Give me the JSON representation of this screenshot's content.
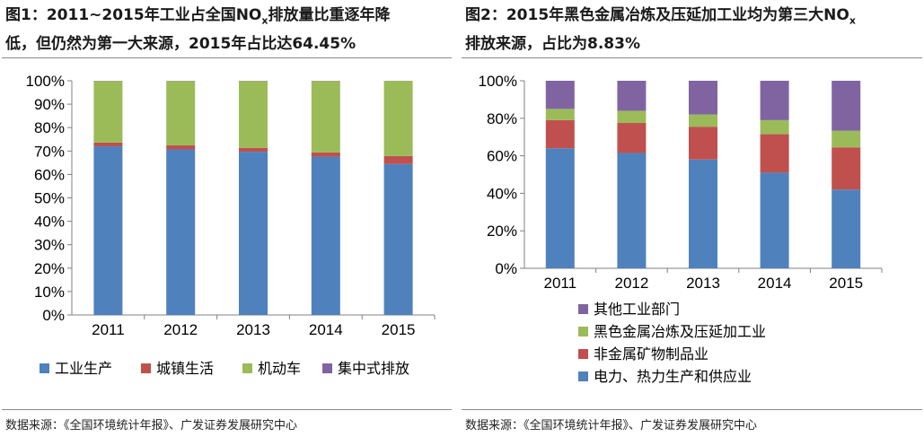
{
  "charts": [
    {
      "id": "left",
      "title": {
        "line1_pre": "图1：2011~2015年工业占全国NO",
        "line1_sub": "x",
        "line1_post": "排放量比重逐年降",
        "line2": "低，但仍然为第一大来源，2015年占比达64.45%"
      },
      "source": "数据来源：《全国环境统计年报》、广发证券发展研究中心"
    },
    {
      "id": "right",
      "title": {
        "line1_pre": "图2：2015年黑色金属冶炼及压延加工业均为第三大NO",
        "line1_sub": "x",
        "line2": "排放来源，占比为8.83%"
      },
      "source": "数据来源：《全国环境统计年报》、广发证券发展研究中心"
    }
  ],
  "chart_data": [
    {
      "type": "bar",
      "stacked": true,
      "categories": [
        "2011",
        "2012",
        "2013",
        "2014",
        "2015"
      ],
      "ylim": [
        0,
        100
      ],
      "yticks": [
        "0%",
        "10%",
        "20%",
        "30%",
        "40%",
        "50%",
        "60%",
        "70%",
        "80%",
        "90%",
        "100%"
      ],
      "ytick_values": [
        0,
        10,
        20,
        30,
        40,
        50,
        60,
        70,
        80,
        90,
        100
      ],
      "legend_position": "bottom",
      "grid": false,
      "series": [
        {
          "name": "工业生产",
          "color": "#4f81bd",
          "values": [
            72.0,
            70.7,
            69.7,
            67.6,
            64.45
          ]
        },
        {
          "name": "城镇生活",
          "color": "#c0504d",
          "values": [
            1.6,
            1.7,
            1.6,
            1.8,
            3.4
          ]
        },
        {
          "name": "机动车",
          "color": "#9bbb59",
          "values": [
            26.3,
            27.5,
            28.6,
            30.5,
            32.1
          ]
        },
        {
          "name": "集中式排放",
          "color": "#8064a2",
          "values": [
            0.1,
            0.1,
            0.1,
            0.1,
            0.05
          ]
        }
      ]
    },
    {
      "type": "bar",
      "stacked": true,
      "categories": [
        "2011",
        "2012",
        "2013",
        "2014",
        "2015"
      ],
      "ylim": [
        0,
        100
      ],
      "yticks": [
        "0%",
        "20%",
        "40%",
        "60%",
        "80%",
        "100%"
      ],
      "ytick_values": [
        0,
        20,
        40,
        60,
        80,
        100
      ],
      "legend_position": "bottom",
      "grid": false,
      "series": [
        {
          "name": "电力、热力生产和供应业",
          "color": "#4f81bd",
          "values": [
            64.0,
            61.5,
            58.0,
            51.0,
            42.0
          ]
        },
        {
          "name": "非金属矿物制品业",
          "color": "#c0504d",
          "values": [
            15.0,
            16.0,
            17.5,
            20.5,
            22.5
          ]
        },
        {
          "name": "黑色金属冶炼及压延加工业",
          "color": "#9bbb59",
          "values": [
            6.0,
            6.5,
            6.5,
            7.5,
            8.83
          ]
        },
        {
          "name": "其他工业部门",
          "color": "#8064a2",
          "values": [
            15.0,
            16.0,
            18.0,
            21.0,
            26.67
          ]
        }
      ]
    }
  ]
}
